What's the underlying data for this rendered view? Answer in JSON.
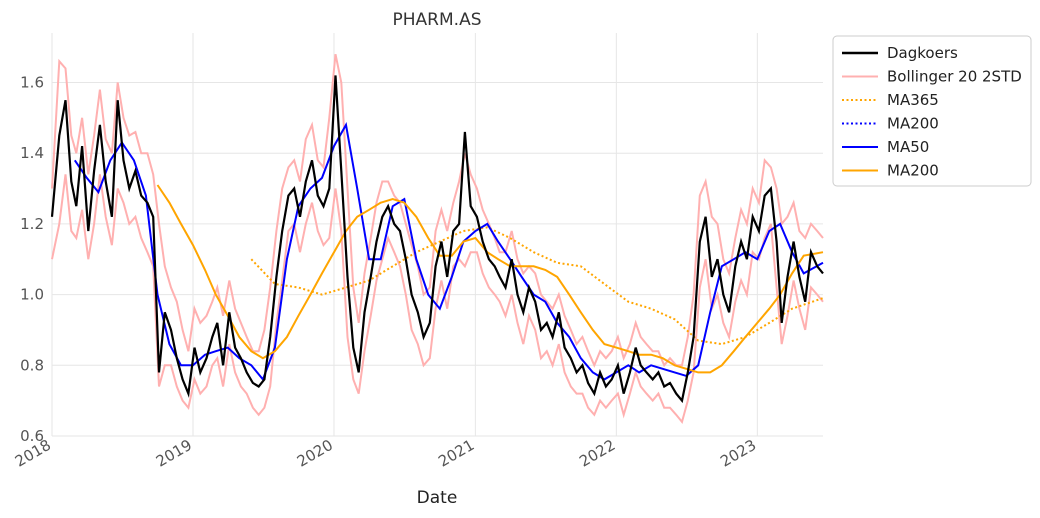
{
  "chart_data": {
    "type": "line",
    "title": "PHARM.AS",
    "xlabel": "Date",
    "ylabel": "",
    "xlim": [
      "2018-01-01",
      "2023-06-20"
    ],
    "ylim": [
      0.6,
      1.74
    ],
    "grid": true,
    "legend_placement": "outside top-right",
    "x_ticks": [
      "2018-01-01",
      "2019-01-01",
      "2020-01-01",
      "2021-01-01",
      "2022-01-01",
      "2023-01-01"
    ],
    "x_tick_labels": [
      "2018",
      "2019",
      "2020",
      "2021",
      "2022",
      "2023"
    ],
    "y_ticks": [
      0.6,
      0.8,
      1.0,
      1.2,
      1.4,
      1.6
    ],
    "y_tick_labels": [
      "0.6",
      "0.8",
      "1.0",
      "1.2",
      "1.4",
      "1.6"
    ],
    "series": [
      {
        "name": "Dagkoers",
        "color": "#000000",
        "style": "solid",
        "x": [
          "2018-01-01",
          "2018-01-20",
          "2018-02-05",
          "2018-02-20",
          "2018-03-05",
          "2018-03-20",
          "2018-04-05",
          "2018-04-20",
          "2018-05-05",
          "2018-05-20",
          "2018-06-05",
          "2018-06-20",
          "2018-07-05",
          "2018-07-20",
          "2018-08-05",
          "2018-08-20",
          "2018-09-05",
          "2018-09-20",
          "2018-10-05",
          "2018-10-20",
          "2018-11-05",
          "2018-11-20",
          "2018-12-05",
          "2018-12-20",
          "2019-01-05",
          "2019-01-20",
          "2019-02-05",
          "2019-02-20",
          "2019-03-05",
          "2019-03-20",
          "2019-04-05",
          "2019-04-20",
          "2019-05-05",
          "2019-05-20",
          "2019-06-05",
          "2019-06-20",
          "2019-07-05",
          "2019-07-20",
          "2019-08-05",
          "2019-08-20",
          "2019-09-05",
          "2019-09-20",
          "2019-10-05",
          "2019-10-20",
          "2019-11-05",
          "2019-11-20",
          "2019-12-05",
          "2019-12-20",
          "2020-01-05",
          "2020-01-20",
          "2020-02-05",
          "2020-02-20",
          "2020-03-05",
          "2020-03-20",
          "2020-04-05",
          "2020-04-20",
          "2020-05-05",
          "2020-05-20",
          "2020-06-05",
          "2020-06-20",
          "2020-07-05",
          "2020-07-20",
          "2020-08-05",
          "2020-08-20",
          "2020-09-05",
          "2020-09-20",
          "2020-10-05",
          "2020-10-20",
          "2020-11-05",
          "2020-11-20",
          "2020-12-05",
          "2020-12-20",
          "2021-01-05",
          "2021-01-20",
          "2021-02-05",
          "2021-02-20",
          "2021-03-05",
          "2021-03-20",
          "2021-04-05",
          "2021-04-20",
          "2021-05-05",
          "2021-05-20",
          "2021-06-05",
          "2021-06-20",
          "2021-07-05",
          "2021-07-20",
          "2021-08-05",
          "2021-08-20",
          "2021-09-05",
          "2021-09-20",
          "2021-10-05",
          "2021-10-20",
          "2021-11-05",
          "2021-11-20",
          "2021-12-05",
          "2021-12-20",
          "2022-01-05",
          "2022-01-20",
          "2022-02-05",
          "2022-02-20",
          "2022-03-05",
          "2022-03-20",
          "2022-04-05",
          "2022-04-20",
          "2022-05-05",
          "2022-05-20",
          "2022-06-05",
          "2022-06-20",
          "2022-07-05",
          "2022-07-20",
          "2022-08-05",
          "2022-08-20",
          "2022-09-05",
          "2022-09-20",
          "2022-10-05",
          "2022-10-20",
          "2022-11-05",
          "2022-11-20",
          "2022-12-05",
          "2022-12-20",
          "2023-01-05",
          "2023-01-20",
          "2023-02-05",
          "2023-02-20",
          "2023-03-05",
          "2023-03-20",
          "2023-04-05",
          "2023-04-20",
          "2023-05-05",
          "2023-05-20",
          "2023-06-05",
          "2023-06-20"
        ],
        "values": [
          1.22,
          1.45,
          1.55,
          1.32,
          1.25,
          1.42,
          1.18,
          1.35,
          1.48,
          1.32,
          1.22,
          1.55,
          1.38,
          1.3,
          1.35,
          1.28,
          1.26,
          1.22,
          0.78,
          0.95,
          0.9,
          0.82,
          0.76,
          0.72,
          0.85,
          0.78,
          0.82,
          0.88,
          0.92,
          0.8,
          0.95,
          0.85,
          0.82,
          0.78,
          0.75,
          0.74,
          0.76,
          0.88,
          1.05,
          1.18,
          1.28,
          1.3,
          1.22,
          1.32,
          1.38,
          1.28,
          1.25,
          1.3,
          1.62,
          1.35,
          1.05,
          0.85,
          0.78,
          0.95,
          1.05,
          1.15,
          1.22,
          1.25,
          1.2,
          1.18,
          1.1,
          1.0,
          0.95,
          0.88,
          0.92,
          1.08,
          1.15,
          1.05,
          1.18,
          1.2,
          1.46,
          1.25,
          1.22,
          1.15,
          1.1,
          1.08,
          1.05,
          1.02,
          1.1,
          1.0,
          0.95,
          1.02,
          0.98,
          0.9,
          0.92,
          0.88,
          0.95,
          0.85,
          0.82,
          0.78,
          0.8,
          0.75,
          0.72,
          0.78,
          0.74,
          0.76,
          0.8,
          0.72,
          0.78,
          0.85,
          0.8,
          0.78,
          0.76,
          0.78,
          0.74,
          0.75,
          0.72,
          0.7,
          0.78,
          0.88,
          1.15,
          1.22,
          1.05,
          1.1,
          1.0,
          0.95,
          1.08,
          1.15,
          1.1,
          1.22,
          1.18,
          1.28,
          1.3,
          1.15,
          0.92,
          1.05,
          1.15,
          1.05,
          0.98,
          1.12,
          1.08,
          1.06
        ]
      },
      {
        "name": "Bollinger 20 2STD",
        "color": "#ffb0b0",
        "style": "solid",
        "upper_values": [
          1.3,
          1.66,
          1.64,
          1.45,
          1.4,
          1.5,
          1.34,
          1.45,
          1.58,
          1.44,
          1.4,
          1.6,
          1.5,
          1.45,
          1.46,
          1.4,
          1.4,
          1.34,
          1.2,
          1.08,
          1.02,
          0.98,
          0.9,
          0.84,
          0.96,
          0.92,
          0.94,
          0.98,
          1.02,
          0.94,
          1.04,
          0.96,
          0.92,
          0.88,
          0.84,
          0.84,
          0.9,
          1.02,
          1.18,
          1.3,
          1.36,
          1.38,
          1.32,
          1.44,
          1.48,
          1.38,
          1.36,
          1.5,
          1.68,
          1.6,
          1.3,
          1.02,
          0.92,
          1.06,
          1.16,
          1.26,
          1.32,
          1.32,
          1.28,
          1.26,
          1.2,
          1.14,
          1.08,
          1.0,
          1.02,
          1.18,
          1.24,
          1.18,
          1.26,
          1.32,
          1.4,
          1.34,
          1.3,
          1.24,
          1.2,
          1.16,
          1.12,
          1.12,
          1.18,
          1.1,
          1.06,
          1.08,
          1.06,
          1.0,
          0.98,
          0.96,
          1.0,
          0.94,
          0.9,
          0.86,
          0.88,
          0.84,
          0.8,
          0.84,
          0.82,
          0.84,
          0.88,
          0.82,
          0.86,
          0.92,
          0.88,
          0.86,
          0.84,
          0.84,
          0.8,
          0.82,
          0.8,
          0.8,
          0.88,
          1.0,
          1.28,
          1.32,
          1.22,
          1.2,
          1.1,
          1.06,
          1.16,
          1.24,
          1.2,
          1.3,
          1.26,
          1.38,
          1.36,
          1.3,
          1.2,
          1.22,
          1.26,
          1.18,
          1.16,
          1.2,
          1.18,
          1.16
        ],
        "lower_values": [
          1.1,
          1.2,
          1.34,
          1.18,
          1.16,
          1.24,
          1.1,
          1.2,
          1.34,
          1.22,
          1.14,
          1.3,
          1.26,
          1.2,
          1.22,
          1.16,
          1.12,
          1.08,
          0.74,
          0.8,
          0.8,
          0.74,
          0.7,
          0.68,
          0.76,
          0.72,
          0.74,
          0.8,
          0.82,
          0.74,
          0.86,
          0.78,
          0.74,
          0.72,
          0.68,
          0.66,
          0.68,
          0.74,
          0.92,
          1.04,
          1.18,
          1.2,
          1.12,
          1.2,
          1.26,
          1.18,
          1.14,
          1.16,
          1.3,
          1.18,
          0.88,
          0.76,
          0.72,
          0.84,
          0.94,
          1.04,
          1.1,
          1.16,
          1.12,
          1.08,
          1.0,
          0.9,
          0.86,
          0.8,
          0.82,
          0.96,
          1.04,
          0.96,
          1.08,
          1.1,
          1.08,
          1.12,
          1.12,
          1.06,
          1.02,
          1.0,
          0.98,
          0.94,
          1.0,
          0.92,
          0.86,
          0.94,
          0.9,
          0.82,
          0.84,
          0.8,
          0.86,
          0.78,
          0.74,
          0.72,
          0.72,
          0.68,
          0.66,
          0.7,
          0.68,
          0.7,
          0.72,
          0.66,
          0.72,
          0.78,
          0.74,
          0.72,
          0.7,
          0.72,
          0.68,
          0.68,
          0.66,
          0.64,
          0.7,
          0.78,
          1.02,
          1.1,
          0.96,
          1.0,
          0.92,
          0.88,
          0.98,
          1.04,
          1.0,
          1.12,
          1.1,
          1.16,
          1.2,
          1.02,
          0.86,
          0.94,
          1.04,
          0.96,
          0.9,
          1.02,
          1.0,
          0.98
        ]
      },
      {
        "name": "MA365",
        "color": "#ffa500",
        "style": "dotted",
        "x": [
          "2019-06-01",
          "2019-08-01",
          "2019-10-01",
          "2019-12-01",
          "2020-02-01",
          "2020-04-01",
          "2020-06-01",
          "2020-08-01",
          "2020-10-01",
          "2020-12-01",
          "2021-02-01",
          "2021-04-01",
          "2021-06-01",
          "2021-08-01",
          "2021-10-01",
          "2021-12-01",
          "2022-02-01",
          "2022-04-01",
          "2022-06-01",
          "2022-08-01",
          "2022-10-01",
          "2022-12-01",
          "2023-02-01",
          "2023-04-01",
          "2023-06-20"
        ],
        "values": [
          1.1,
          1.03,
          1.02,
          1.0,
          1.02,
          1.04,
          1.08,
          1.12,
          1.15,
          1.18,
          1.19,
          1.16,
          1.12,
          1.09,
          1.08,
          1.03,
          0.98,
          0.96,
          0.93,
          0.87,
          0.86,
          0.88,
          0.92,
          0.96,
          0.99
        ]
      },
      {
        "name": "MA200",
        "color": "#0000ff",
        "style": "dotted",
        "x": [],
        "values": []
      },
      {
        "name": "MA50",
        "color": "#0000ff",
        "style": "solid",
        "x": [
          "2018-03-01",
          "2018-04-01",
          "2018-05-01",
          "2018-06-01",
          "2018-07-01",
          "2018-08-01",
          "2018-09-01",
          "2018-10-01",
          "2018-11-01",
          "2018-12-01",
          "2019-01-01",
          "2019-02-01",
          "2019-03-01",
          "2019-04-01",
          "2019-05-01",
          "2019-06-01",
          "2019-07-01",
          "2019-08-01",
          "2019-09-01",
          "2019-10-01",
          "2019-11-01",
          "2019-12-01",
          "2020-01-01",
          "2020-02-01",
          "2020-03-01",
          "2020-04-01",
          "2020-05-01",
          "2020-06-01",
          "2020-07-01",
          "2020-08-01",
          "2020-09-01",
          "2020-10-01",
          "2020-11-01",
          "2020-12-01",
          "2021-01-01",
          "2021-02-01",
          "2021-03-01",
          "2021-04-01",
          "2021-05-01",
          "2021-06-01",
          "2021-07-01",
          "2021-08-01",
          "2021-09-01",
          "2021-10-01",
          "2021-11-01",
          "2021-12-01",
          "2022-01-01",
          "2022-02-01",
          "2022-03-01",
          "2022-04-01",
          "2022-05-01",
          "2022-06-01",
          "2022-07-01",
          "2022-08-01",
          "2022-09-01",
          "2022-10-01",
          "2022-11-01",
          "2022-12-01",
          "2023-01-01",
          "2023-02-01",
          "2023-03-01",
          "2023-04-01",
          "2023-05-01",
          "2023-06-20"
        ],
        "values": [
          1.38,
          1.33,
          1.29,
          1.38,
          1.43,
          1.38,
          1.28,
          1.0,
          0.86,
          0.8,
          0.8,
          0.83,
          0.84,
          0.85,
          0.82,
          0.8,
          0.76,
          0.85,
          1.1,
          1.25,
          1.3,
          1.33,
          1.42,
          1.48,
          1.3,
          1.1,
          1.1,
          1.25,
          1.27,
          1.1,
          1.0,
          0.96,
          1.05,
          1.15,
          1.18,
          1.2,
          1.15,
          1.1,
          1.05,
          1.0,
          0.98,
          0.92,
          0.88,
          0.82,
          0.78,
          0.76,
          0.78,
          0.8,
          0.78,
          0.8,
          0.79,
          0.78,
          0.77,
          0.8,
          0.95,
          1.08,
          1.1,
          1.12,
          1.1,
          1.18,
          1.2,
          1.12,
          1.06,
          1.09
        ]
      },
      {
        "name": "MA200",
        "color": "#ffa500",
        "style": "solid",
        "x": [
          "2018-10-01",
          "2018-11-01",
          "2018-12-01",
          "2019-01-01",
          "2019-02-01",
          "2019-03-01",
          "2019-04-01",
          "2019-05-01",
          "2019-06-01",
          "2019-07-01",
          "2019-08-01",
          "2019-09-01",
          "2019-10-01",
          "2019-11-01",
          "2019-12-01",
          "2020-01-01",
          "2020-02-01",
          "2020-03-01",
          "2020-04-01",
          "2020-05-01",
          "2020-06-01",
          "2020-07-01",
          "2020-08-01",
          "2020-09-01",
          "2020-10-01",
          "2020-11-01",
          "2020-12-01",
          "2021-01-01",
          "2021-02-01",
          "2021-03-01",
          "2021-04-01",
          "2021-05-01",
          "2021-06-01",
          "2021-07-01",
          "2021-08-01",
          "2021-09-01",
          "2021-10-01",
          "2021-11-01",
          "2021-12-01",
          "2022-01-01",
          "2022-02-01",
          "2022-03-01",
          "2022-04-01",
          "2022-05-01",
          "2022-06-01",
          "2022-07-01",
          "2022-08-01",
          "2022-09-01",
          "2022-10-01",
          "2022-11-01",
          "2022-12-01",
          "2023-01-01",
          "2023-02-01",
          "2023-03-01",
          "2023-04-01",
          "2023-05-01",
          "2023-06-20"
        ],
        "values": [
          1.31,
          1.26,
          1.2,
          1.14,
          1.07,
          1.0,
          0.94,
          0.88,
          0.84,
          0.82,
          0.84,
          0.88,
          0.94,
          1.0,
          1.06,
          1.12,
          1.18,
          1.22,
          1.24,
          1.26,
          1.27,
          1.26,
          1.22,
          1.16,
          1.11,
          1.11,
          1.15,
          1.16,
          1.12,
          1.1,
          1.08,
          1.08,
          1.08,
          1.07,
          1.05,
          1.0,
          0.95,
          0.9,
          0.86,
          0.85,
          0.84,
          0.83,
          0.83,
          0.82,
          0.8,
          0.79,
          0.78,
          0.78,
          0.8,
          0.84,
          0.88,
          0.92,
          0.96,
          1.0,
          1.06,
          1.11,
          1.12
        ]
      }
    ]
  }
}
